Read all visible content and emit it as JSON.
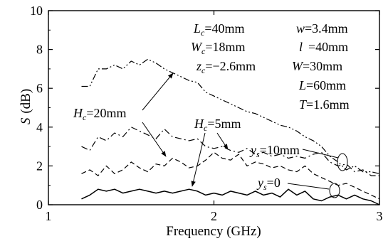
{
  "chart_data": {
    "type": "line",
    "xlabel": "Frequency (GHz)",
    "ylabel": {
      "symbol": "S",
      "unit": "(dB)"
    },
    "xlim": [
      1,
      3
    ],
    "ylim": [
      0,
      10
    ],
    "xticks": [
      "1",
      "2",
      "3"
    ],
    "yticks": [
      "0",
      "2",
      "4",
      "6",
      "8",
      "10"
    ],
    "grid": false,
    "series": [
      {
        "style": "dashdotdot",
        "x": [
          1.2,
          1.25,
          1.3,
          1.35,
          1.4,
          1.45,
          1.5,
          1.55,
          1.6,
          1.65,
          1.7,
          1.75,
          1.8,
          1.85,
          1.9,
          1.95,
          2.0,
          2.05,
          2.1,
          2.15,
          2.2,
          2.25,
          2.3,
          2.35,
          2.4,
          2.45,
          2.5,
          2.55,
          2.6,
          2.65,
          2.7,
          2.75,
          2.8,
          2.85,
          2.9,
          2.95,
          3.0
        ],
        "y": [
          6.1,
          6.1,
          7.0,
          7.0,
          7.2,
          7.0,
          7.4,
          7.2,
          7.5,
          7.3,
          7.0,
          6.8,
          6.6,
          6.4,
          6.3,
          5.8,
          5.6,
          5.4,
          5.2,
          5.0,
          4.8,
          4.7,
          4.5,
          4.3,
          4.1,
          4.0,
          3.8,
          3.5,
          3.3,
          3.0,
          2.5,
          2.2,
          1.8,
          2.0,
          1.7,
          1.7,
          1.6
        ]
      },
      {
        "style": "dashdot",
        "x": [
          1.2,
          1.25,
          1.3,
          1.35,
          1.4,
          1.45,
          1.5,
          1.55,
          1.6,
          1.65,
          1.7,
          1.75,
          1.8,
          1.85,
          1.9,
          1.95,
          2.0,
          2.05,
          2.1,
          2.15,
          2.2,
          2.25,
          2.3,
          2.35,
          2.4,
          2.45,
          2.5,
          2.55,
          2.6,
          2.65,
          2.7,
          2.75,
          2.8,
          2.85,
          2.9,
          2.95,
          3.0
        ],
        "y": [
          3.0,
          2.8,
          3.5,
          3.3,
          3.7,
          3.5,
          4.0,
          3.8,
          3.6,
          3.4,
          3.9,
          3.5,
          3.4,
          3.3,
          3.4,
          3.0,
          2.9,
          3.0,
          2.8,
          2.7,
          2.9,
          2.6,
          2.7,
          2.5,
          2.6,
          2.4,
          2.5,
          2.4,
          2.6,
          2.7,
          2.2,
          2.0,
          2.1,
          1.7,
          1.8,
          1.5,
          1.5
        ]
      },
      {
        "style": "dashed",
        "x": [
          1.2,
          1.25,
          1.3,
          1.35,
          1.4,
          1.45,
          1.5,
          1.55,
          1.6,
          1.65,
          1.7,
          1.75,
          1.8,
          1.85,
          1.9,
          1.95,
          2.0,
          2.05,
          2.1,
          2.15,
          2.2,
          2.25,
          2.3,
          2.35,
          2.4,
          2.45,
          2.5,
          2.55,
          2.6,
          2.65,
          2.7,
          2.75,
          2.8,
          2.85,
          2.9,
          2.95,
          3.0
        ],
        "y": [
          1.6,
          1.8,
          1.5,
          2.0,
          1.6,
          1.8,
          2.2,
          1.9,
          1.7,
          2.1,
          2.0,
          2.4,
          2.2,
          1.9,
          2.0,
          2.3,
          2.7,
          2.4,
          2.3,
          2.6,
          2.0,
          2.2,
          2.1,
          1.9,
          2.0,
          1.8,
          1.7,
          2.0,
          1.6,
          1.4,
          1.2,
          1.0,
          1.1,
          0.9,
          0.7,
          0.5,
          0.3
        ]
      },
      {
        "style": "solid",
        "x": [
          1.2,
          1.25,
          1.3,
          1.35,
          1.4,
          1.45,
          1.5,
          1.55,
          1.6,
          1.65,
          1.7,
          1.75,
          1.8,
          1.85,
          1.9,
          1.95,
          2.0,
          2.05,
          2.1,
          2.15,
          2.2,
          2.25,
          2.3,
          2.35,
          2.4,
          2.45,
          2.5,
          2.55,
          2.6,
          2.65,
          2.7,
          2.75,
          2.8,
          2.85,
          2.9,
          2.95,
          3.0
        ],
        "y": [
          0.3,
          0.5,
          0.8,
          0.7,
          0.8,
          0.6,
          0.7,
          0.8,
          0.7,
          0.6,
          0.7,
          0.6,
          0.7,
          0.8,
          0.7,
          0.5,
          0.6,
          0.5,
          0.7,
          0.6,
          0.5,
          0.7,
          0.5,
          0.6,
          0.4,
          0.8,
          0.5,
          0.7,
          0.3,
          0.2,
          0.4,
          0.5,
          0.3,
          0.5,
          0.3,
          0.2,
          0.0
        ]
      }
    ],
    "params": {
      "left": [
        {
          "base": "L",
          "sub": "c",
          "value": "=40mm"
        },
        {
          "base": "W",
          "sub": "c",
          "value": "=18mm"
        },
        {
          "base": "z",
          "sub": "c",
          "value": "=−2.6mm"
        }
      ],
      "right": [
        {
          "base": "w",
          "value": "=3.4mm"
        },
        {
          "base": "l",
          "value": "=40mm"
        },
        {
          "base": "W",
          "value": "=30mm"
        },
        {
          "base": "L",
          "value": "=60mm"
        },
        {
          "base": "T",
          "value": "=1.6mm"
        }
      ]
    },
    "annotations": {
      "hc20": {
        "base": "H",
        "sub": "c",
        "value": "=20mm"
      },
      "hc5": {
        "base": "H",
        "sub": "c",
        "value": "=5mm"
      },
      "ys10": {
        "base": "y",
        "sub": "s",
        "value": "=10mm"
      },
      "ys0": {
        "base": "y",
        "sub": "s",
        "value": "=0"
      }
    }
  }
}
